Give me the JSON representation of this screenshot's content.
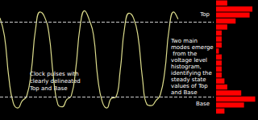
{
  "chart_data": [
    {
      "type": "line",
      "x": [
        0,
        2.5,
        5,
        7.5,
        10,
        12.5,
        15,
        17.5,
        20,
        22.5,
        25,
        27.5,
        30,
        32.5,
        35,
        37.5,
        40,
        42.5,
        45,
        47.5,
        50,
        52.5,
        55,
        57.5,
        60,
        62.5,
        65,
        67.5,
        70,
        72.5,
        75,
        77.5,
        80,
        82.5,
        85,
        87.5,
        90,
        92.5,
        95,
        97.5,
        100
      ],
      "values": [
        8.5,
        7.0,
        3.5,
        1.4,
        1.0,
        1.6,
        2.0,
        4.0,
        7.6,
        9.0,
        8.6,
        7.2,
        3.6,
        1.3,
        1.1,
        1.7,
        2.0,
        4.2,
        7.8,
        9.1,
        8.4,
        7.1,
        3.4,
        1.5,
        1.0,
        1.8,
        1.9,
        4.1,
        7.7,
        8.9,
        8.5,
        7.0,
        3.5,
        1.3,
        1.2,
        1.6,
        2.1,
        4.0,
        7.6,
        9.0,
        8.4
      ],
      "color": "#dcdc8c",
      "xlim": [
        0,
        120
      ],
      "ylim": [
        0,
        10
      ],
      "tick_labels": false,
      "grid": false,
      "reference_lines": [
        {
          "label": "Top",
          "value": 8.2
        },
        {
          "label": "Base",
          "value": 1.9
        }
      ],
      "annotations": [
        "Clock pulses with clearly delineated Top and Base"
      ]
    },
    {
      "type": "histogram",
      "orientation": "horizontal",
      "bins": [
        0,
        0.5,
        1,
        1.5,
        2,
        2.5,
        3,
        3.5,
        4,
        4.5,
        5,
        5.5,
        6,
        6.5,
        7,
        7.5,
        8,
        8.5,
        9,
        9.5,
        10
      ],
      "counts": [
        0,
        3,
        10,
        14,
        9,
        4,
        3,
        2,
        2,
        2,
        2,
        1,
        2,
        2,
        2,
        4,
        7,
        12,
        13,
        4
      ],
      "color": "#ff0000",
      "xlim": [
        0,
        15
      ],
      "ylim": [
        0,
        10
      ],
      "tick_labels": false,
      "annotations": [
        "Two main modes emerge from the voltage level histogram, identifying the steady state values of Top and Base"
      ]
    }
  ]
}
